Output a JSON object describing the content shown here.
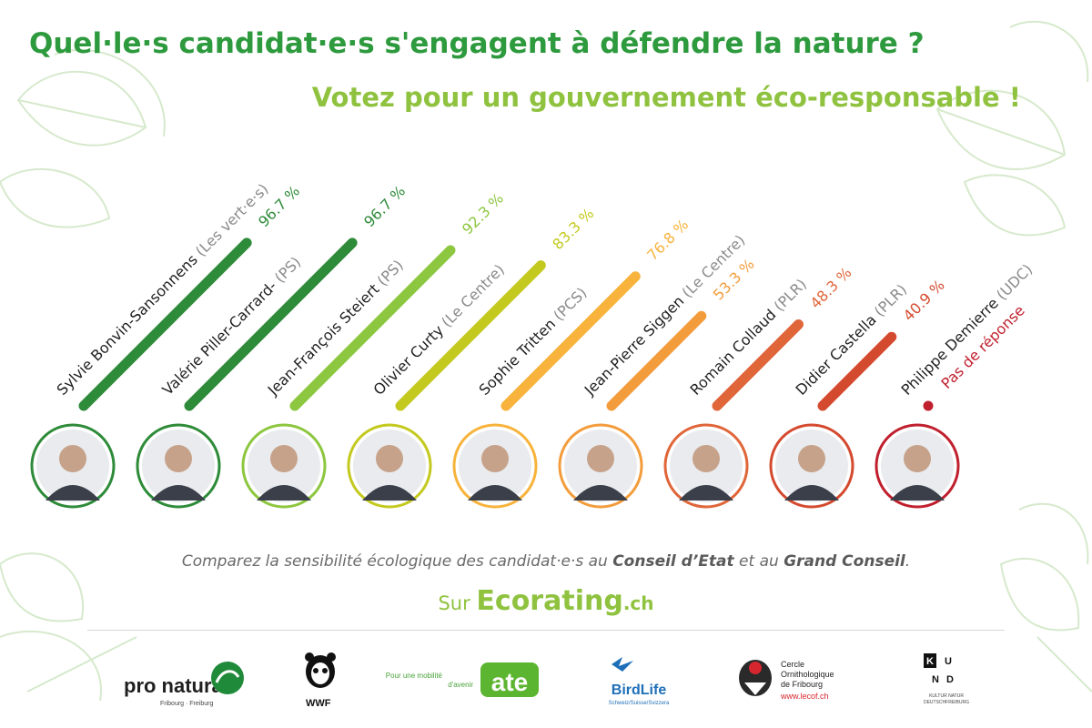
{
  "header": {
    "title": "Quel·le·s candidat·e·s s'engagent à défendre la nature ?",
    "subtitle": "Votez pour un gouvernement éco-responsable !"
  },
  "chart_data": {
    "type": "bar",
    "categories": [
      "Sylvie Bonvin-Sansonnens",
      "Valérie Piller-Carrard-",
      "Jean-François Steiert",
      "Olivier Curty",
      "Sophie Tritten",
      "Jean-Pierre Siggen",
      "Romain Collaud",
      "Didier Castella",
      "Philippe Demierre"
    ],
    "parties": [
      "(Les vert·e·s)",
      "(PS)",
      "(PS)",
      "(Le Centre)",
      "(PCS)",
      "(Le Centre)",
      "(PLR)",
      "(PLR)",
      "(UDC)"
    ],
    "values": [
      96.7,
      96.7,
      92.3,
      83.3,
      76.8,
      53.3,
      48.3,
      40.9,
      null
    ],
    "value_labels": [
      "96.7 %",
      "96.7 %",
      "92.3 %",
      "83.3 %",
      "76.8 %",
      "53.3 %",
      "48.3 %",
      "40.9 %",
      "Pas de réponse"
    ],
    "colors": [
      "#2e8b39",
      "#2e8b39",
      "#8dc63f",
      "#c3c91e",
      "#f7b33b",
      "#f39c3c",
      "#e0663a",
      "#d44a2f",
      "#c0202e"
    ],
    "ylim": [
      0,
      100
    ]
  },
  "footer": {
    "text_1": "Comparez la sensibilité écologique des candidat·e·s au ",
    "bold_1": "Conseil d’Etat",
    "text_2": " et au ",
    "bold_2": "Grand Conseil",
    "text_3": ".",
    "site_prefix": "Sur ",
    "site_brand": "Ecorating",
    "site_tld": ".ch"
  },
  "logos": {
    "pronatura": "pro natura",
    "pronatura_sub": "Fribourg · Freiburg",
    "wwf": "WWF",
    "ate_tagline_1": "Pour une mobilité",
    "ate_tagline_2": "d'avenir",
    "ate": "ate",
    "birdlife": "BirdLife",
    "birdlife_sub": "Schweiz/Suisse/Svizzera",
    "cof_1": "Cercle",
    "cof_2": "Ornithologique",
    "cof_3": "de Fribourg",
    "cof_url": "www.lecof.ch",
    "kund_top": "KU",
    "kund_bottom": "ND",
    "kund_sub_1": "KULTUR NATUR",
    "kund_sub_2": "DEUTSCHFREIBURG"
  }
}
